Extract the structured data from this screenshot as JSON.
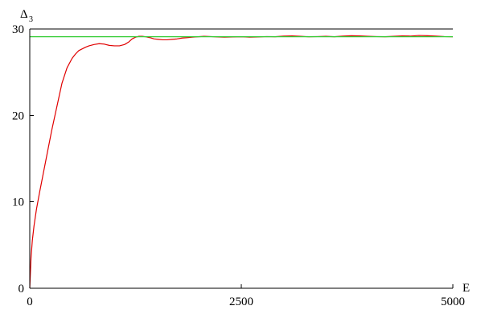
{
  "chart_data": {
    "type": "line",
    "title": "",
    "xlabel": "E",
    "ylabel": "Δ",
    "ylabel_subscript": "3",
    "xlim": [
      0,
      5000
    ],
    "ylim": [
      0,
      30
    ],
    "x_ticks": [
      0,
      2500,
      5000
    ],
    "y_ticks": [
      0,
      10,
      20,
      30
    ],
    "x_tick_labels": [
      "0",
      "2500",
      "5000"
    ],
    "y_tick_labels": [
      "0",
      "10",
      "20",
      "30"
    ],
    "grid": false,
    "legend": "none",
    "series": [
      {
        "color": "#e00000",
        "style": "solid",
        "x": [
          0,
          15,
          30,
          50,
          80,
          120,
          160,
          200,
          260,
          320,
          380,
          440,
          500,
          540,
          580,
          620,
          660,
          700,
          760,
          820,
          880,
          940,
          1000,
          1060,
          1120,
          1170,
          1210,
          1250,
          1290,
          1330,
          1370,
          1420,
          1470,
          1520,
          1570,
          1620,
          1680,
          1740,
          1800,
          1860,
          1920,
          1990,
          2060,
          2140,
          2220,
          2300,
          2400,
          2500,
          2600,
          2700,
          2800,
          2900,
          3000,
          3100,
          3200,
          3300,
          3400,
          3500,
          3600,
          3700,
          3800,
          3900,
          4000,
          4100,
          4200,
          4300,
          4400,
          4500,
          4600,
          4700,
          4800,
          4900,
          5000
        ],
        "y": [
          0.0,
          3.5,
          5.5,
          7.2,
          9.2,
          11.3,
          13.3,
          15.3,
          18.3,
          21.0,
          23.7,
          25.5,
          26.6,
          27.1,
          27.5,
          27.7,
          27.9,
          28.05,
          28.2,
          28.3,
          28.25,
          28.1,
          28.05,
          28.05,
          28.2,
          28.5,
          28.85,
          29.05,
          29.15,
          29.15,
          29.1,
          29.0,
          28.85,
          28.8,
          28.75,
          28.75,
          28.8,
          28.85,
          28.95,
          29.0,
          29.05,
          29.1,
          29.15,
          29.12,
          29.08,
          29.05,
          29.08,
          29.1,
          29.05,
          29.08,
          29.12,
          29.1,
          29.18,
          29.2,
          29.15,
          29.1,
          29.12,
          29.15,
          29.1,
          29.18,
          29.22,
          29.2,
          29.15,
          29.12,
          29.1,
          29.15,
          29.2,
          29.18,
          29.25,
          29.22,
          29.18,
          29.12,
          29.1
        ]
      },
      {
        "color": "#33cc33",
        "style": "solid",
        "x": [
          0,
          5000
        ],
        "y": [
          29.1,
          29.1
        ]
      }
    ]
  }
}
